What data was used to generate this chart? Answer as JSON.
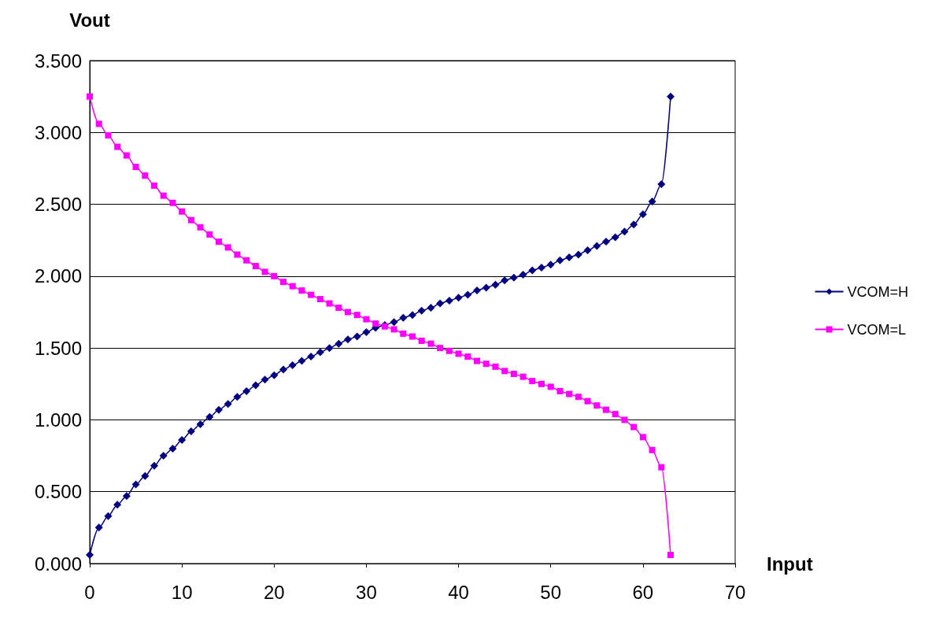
{
  "chart_data": {
    "type": "line",
    "xlabel": "Input",
    "ylabel": "Vout",
    "x": [
      0,
      1,
      2,
      3,
      4,
      5,
      6,
      7,
      8,
      9,
      10,
      11,
      12,
      13,
      14,
      15,
      16,
      17,
      18,
      19,
      20,
      21,
      22,
      23,
      24,
      25,
      26,
      27,
      28,
      29,
      30,
      31,
      32,
      33,
      34,
      35,
      36,
      37,
      38,
      39,
      40,
      41,
      42,
      43,
      44,
      45,
      46,
      47,
      48,
      49,
      50,
      51,
      52,
      53,
      54,
      55,
      56,
      57,
      58,
      59,
      60,
      61,
      62,
      63
    ],
    "series": [
      {
        "name": "VCOM=H",
        "color": "#000080",
        "marker": "diamond",
        "values": [
          0.06,
          0.25,
          0.33,
          0.41,
          0.47,
          0.55,
          0.61,
          0.68,
          0.75,
          0.8,
          0.86,
          0.92,
          0.97,
          1.02,
          1.07,
          1.11,
          1.16,
          1.2,
          1.24,
          1.28,
          1.31,
          1.35,
          1.38,
          1.41,
          1.44,
          1.47,
          1.5,
          1.53,
          1.56,
          1.58,
          1.61,
          1.64,
          1.66,
          1.68,
          1.71,
          1.73,
          1.76,
          1.78,
          1.81,
          1.83,
          1.85,
          1.87,
          1.9,
          1.92,
          1.94,
          1.97,
          1.99,
          2.01,
          2.04,
          2.06,
          2.08,
          2.11,
          2.13,
          2.15,
          2.18,
          2.21,
          2.24,
          2.27,
          2.31,
          2.36,
          2.43,
          2.52,
          2.64,
          3.25
        ]
      },
      {
        "name": "VCOM=L",
        "color": "#ff00ff",
        "marker": "square",
        "values": [
          3.25,
          3.06,
          2.98,
          2.9,
          2.84,
          2.76,
          2.7,
          2.63,
          2.56,
          2.51,
          2.45,
          2.39,
          2.34,
          2.29,
          2.24,
          2.2,
          2.15,
          2.11,
          2.07,
          2.03,
          2.0,
          1.96,
          1.93,
          1.9,
          1.87,
          1.84,
          1.81,
          1.78,
          1.75,
          1.73,
          1.7,
          1.67,
          1.65,
          1.63,
          1.6,
          1.58,
          1.55,
          1.53,
          1.5,
          1.48,
          1.46,
          1.44,
          1.41,
          1.39,
          1.37,
          1.34,
          1.32,
          1.3,
          1.27,
          1.25,
          1.23,
          1.2,
          1.18,
          1.16,
          1.13,
          1.1,
          1.07,
          1.04,
          1.0,
          0.95,
          0.88,
          0.79,
          0.67,
          0.06
        ]
      }
    ],
    "xlim": [
      0,
      70
    ],
    "xticks": [
      0,
      10,
      20,
      30,
      40,
      50,
      60,
      70
    ],
    "ylim": [
      0,
      3.5
    ],
    "yticks": [
      {
        "value": 0,
        "label": "0.000"
      },
      {
        "value": 0.5,
        "label": "0.500"
      },
      {
        "value": 1,
        "label": "1.000"
      },
      {
        "value": 1.5,
        "label": "1.500"
      },
      {
        "value": 2,
        "label": "2.000"
      },
      {
        "value": 2.5,
        "label": "2.500"
      },
      {
        "value": 3,
        "label": "3.000"
      },
      {
        "value": 3.5,
        "label": "3.500"
      }
    ],
    "grid": "y",
    "legend": "right",
    "line_style": "solid"
  }
}
